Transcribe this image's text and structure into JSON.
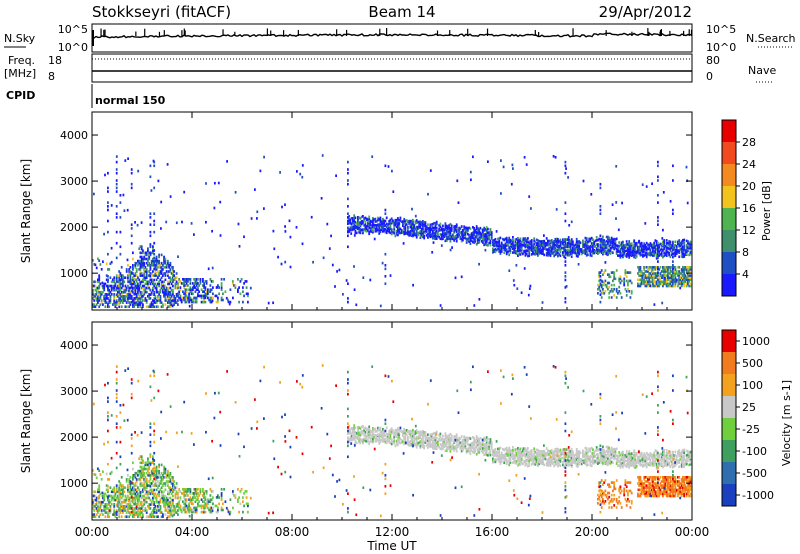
{
  "header": {
    "station": "Stokkseyri (fitACF)",
    "beam": "Beam 14",
    "date": "29/Apr/2012"
  },
  "strip": {
    "nsky_label": "N.Sky",
    "nsky_ticks": [
      "10^5",
      "10^0"
    ],
    "nsearch_label": "N.Search",
    "nsearch_ticks": [
      "10^5",
      "10^0"
    ],
    "freq_label_1": "Freq.",
    "freq_label_2": "[MHz]",
    "freq_ticks": [
      "18",
      "8"
    ],
    "nave_label": "Nave",
    "nave_ticks": [
      "80",
      "0"
    ],
    "cpid_label": "CPID",
    "cpid_value": "normal 150"
  },
  "chart_data": [
    {
      "type": "heatmap",
      "parameter": "Power",
      "ylabel": "Slant Range [km]",
      "ylim": [
        200,
        4500
      ],
      "yticks": [
        "1000",
        "2000",
        "3000",
        "4000"
      ],
      "xlim": [
        0,
        24
      ],
      "colorbar": {
        "label": "Power [dB]",
        "ticks": [
          "4",
          "8",
          "12",
          "16",
          "20",
          "24",
          "28"
        ],
        "colors": [
          "#1a1aff",
          "#1f4fc4",
          "#3f8f6c",
          "#4fb44f",
          "#f2c21f",
          "#f48a1f",
          "#f24a1f",
          "#e80000"
        ]
      },
      "bands": [
        {
          "t": [
            10.2,
            24
          ],
          "range": [
            1500,
            2150
          ],
          "note": "E/F echo band"
        },
        {
          "t": [
            0,
            3
          ],
          "range": [
            300,
            1300
          ]
        },
        {
          "t": [
            22,
            24
          ],
          "range": [
            800,
            1200
          ]
        }
      ]
    },
    {
      "type": "heatmap",
      "parameter": "Velocity",
      "ylabel": "Slant Range [km]",
      "ylim": [
        200,
        4500
      ],
      "yticks": [
        "1000",
        "2000",
        "3000",
        "4000"
      ],
      "xlim": [
        0,
        24
      ],
      "xlabel": "Time UT",
      "xticks": [
        "00:00",
        "04:00",
        "08:00",
        "12:00",
        "16:00",
        "20:00",
        "00:00"
      ],
      "colorbar": {
        "label": "Velocity [m s-1]",
        "ticks": [
          "1000",
          "500",
          "100",
          "25",
          "-25",
          "-100",
          "-500",
          "-1000"
        ],
        "colors": [
          "#1a3fbf",
          "#2f6fb0",
          "#3f9f5f",
          "#6fcf3f",
          "#c8c8c8",
          "#f2a21f",
          "#f27a1f",
          "#e80000"
        ]
      }
    }
  ]
}
